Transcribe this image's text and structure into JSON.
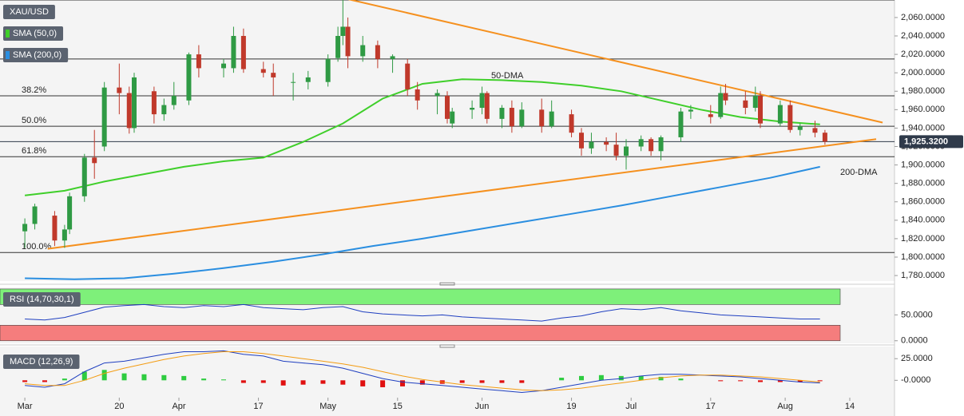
{
  "chart_data": [
    {
      "type": "candlestick",
      "title": "XAU/USD",
      "up_color": "#2f9a44",
      "down_color": "#c0392b",
      "xlim": [
        -5,
        175
      ],
      "xticks": [
        {
          "value": 0,
          "label": "Mar"
        },
        {
          "value": 19,
          "label": "20"
        },
        {
          "value": 31,
          "label": "Apr"
        },
        {
          "value": 47,
          "label": "17"
        },
        {
          "value": 61,
          "label": "May"
        },
        {
          "value": 75,
          "label": "15"
        },
        {
          "value": 92,
          "label": "Jun"
        },
        {
          "value": 110,
          "label": "19"
        },
        {
          "value": 122,
          "label": "Jul"
        },
        {
          "value": 138,
          "label": "17"
        },
        {
          "value": 153,
          "label": "Aug"
        },
        {
          "value": 166,
          "label": "14"
        }
      ],
      "ylim": [
        1774,
        2079
      ],
      "yticks": [
        {
          "value": 1780,
          "label": "1,780.0000"
        },
        {
          "value": 1800,
          "label": "1,800.0000"
        },
        {
          "value": 1820,
          "label": "1,820.0000"
        },
        {
          "value": 1840,
          "label": "1,840.0000"
        },
        {
          "value": 1860,
          "label": "1,860.0000"
        },
        {
          "value": 1880,
          "label": "1,880.0000"
        },
        {
          "value": 1900,
          "label": "1,900.0000"
        },
        {
          "value": 1920,
          "label": "1,920.0000"
        },
        {
          "value": 1940,
          "label": "1,940.0000"
        },
        {
          "value": 1960,
          "label": "1,960.0000"
        },
        {
          "value": 1980,
          "label": "1,980.0000"
        },
        {
          "value": 2000,
          "label": "2,000.0000"
        },
        {
          "value": 2020,
          "label": "2,020.0000"
        },
        {
          "value": 2040,
          "label": "2,040.0000"
        },
        {
          "value": 2060,
          "label": "2,060.0000"
        }
      ],
      "candles": [
        [
          0,
          1828,
          1842,
          1810,
          1836
        ],
        [
          2,
          1836,
          1858,
          1830,
          1855
        ],
        [
          6,
          1845,
          1850,
          1812,
          1818
        ],
        [
          8,
          1818,
          1835,
          1810,
          1830
        ],
        [
          9,
          1830,
          1870,
          1825,
          1866
        ],
        [
          12,
          1866,
          1912,
          1860,
          1908
        ],
        [
          14,
          1908,
          1938,
          1885,
          1902
        ],
        [
          16,
          1920,
          1990,
          1915,
          1984
        ],
        [
          19,
          1984,
          2010,
          1955,
          1978
        ],
        [
          21,
          1978,
          1985,
          1934,
          1940
        ],
        [
          22,
          1940,
          2000,
          1935,
          1995
        ],
        [
          26,
          1980,
          1985,
          1945,
          1955
        ],
        [
          28,
          1955,
          1972,
          1948,
          1965
        ],
        [
          30,
          1965,
          1990,
          1960,
          1975
        ],
        [
          33,
          1970,
          2022,
          1965,
          2020
        ],
        [
          35,
          2020,
          2030,
          1995,
          2005
        ],
        [
          40,
          2005,
          2015,
          1995,
          2010
        ],
        [
          42,
          2005,
          2050,
          2000,
          2040
        ],
        [
          44,
          2040,
          2048,
          2000,
          2004
        ],
        [
          48,
          2004,
          2012,
          1995,
          2000
        ],
        [
          50,
          2000,
          2010,
          1975,
          1995
        ],
        [
          54,
          1990,
          2000,
          1970,
          1990
        ],
        [
          57,
          1990,
          2002,
          1982,
          1995
        ],
        [
          61,
          1990,
          2020,
          1985,
          2015
        ],
        [
          63,
          2016,
          2050,
          2012,
          2040
        ],
        [
          64,
          2040,
          2080,
          2030,
          2050
        ],
        [
          65,
          2050,
          2060,
          2005,
          2018
        ],
        [
          68,
          2018,
          2040,
          2012,
          2030
        ],
        [
          71,
          2030,
          2035,
          2005,
          2015
        ],
        [
          74,
          2015,
          2020,
          2000,
          2018
        ],
        [
          77,
          2010,
          2015,
          1975,
          1982
        ],
        [
          79,
          1982,
          1990,
          1960,
          1970
        ],
        [
          83,
          1975,
          1982,
          1955,
          1978
        ],
        [
          85,
          1975,
          1980,
          1945,
          1950
        ],
        [
          86,
          1945,
          1962,
          1940,
          1958
        ],
        [
          90,
          1960,
          1970,
          1950,
          1962
        ],
        [
          92,
          1962,
          1985,
          1955,
          1978
        ],
        [
          93,
          1978,
          1980,
          1945,
          1950
        ],
        [
          96,
          1950,
          1965,
          1940,
          1962
        ],
        [
          98,
          1962,
          1970,
          1935,
          1942
        ],
        [
          100,
          1942,
          1968,
          1940,
          1960
        ],
        [
          104,
          1960,
          1972,
          1935,
          1942
        ],
        [
          106,
          1942,
          1970,
          1940,
          1958
        ],
        [
          110,
          1955,
          1960,
          1930,
          1935
        ],
        [
          112,
          1935,
          1940,
          1910,
          1918
        ],
        [
          114,
          1918,
          1935,
          1912,
          1925
        ],
        [
          117,
          1925,
          1930,
          1915,
          1922
        ],
        [
          119,
          1922,
          1935,
          1905,
          1910
        ],
        [
          121,
          1910,
          1928,
          1895,
          1920
        ],
        [
          124,
          1920,
          1932,
          1915,
          1928
        ],
        [
          126,
          1928,
          1930,
          1910,
          1915
        ],
        [
          128,
          1915,
          1932,
          1905,
          1930
        ],
        [
          132,
          1930,
          1962,
          1925,
          1958
        ],
        [
          134,
          1958,
          1965,
          1950,
          1960
        ],
        [
          138,
          1955,
          1965,
          1945,
          1952
        ],
        [
          140,
          1952,
          1985,
          1950,
          1978
        ],
        [
          141,
          1978,
          1988,
          1965,
          1970
        ],
        [
          145,
          1970,
          1980,
          1955,
          1962
        ],
        [
          147,
          1962,
          1985,
          1958,
          1975
        ],
        [
          148,
          1975,
          1980,
          1940,
          1945
        ],
        [
          152,
          1945,
          1970,
          1942,
          1965
        ],
        [
          154,
          1965,
          1970,
          1935,
          1938
        ],
        [
          156,
          1938,
          1945,
          1932,
          1942
        ],
        [
          159,
          1940,
          1948,
          1930,
          1935
        ],
        [
          161,
          1935,
          1938,
          1922,
          1925.32
        ]
      ],
      "series": [
        {
          "name": "SMA (50,0)",
          "color": "#3fcf2a",
          "annotation": "50-DMA",
          "x": [
            0,
            8,
            16,
            24,
            32,
            40,
            48,
            56,
            64,
            72,
            80,
            88,
            96,
            104,
            112,
            120,
            128,
            136,
            144,
            152,
            160
          ],
          "values": [
            1867,
            1872,
            1882,
            1890,
            1898,
            1904,
            1908,
            1925,
            1945,
            1972,
            1988,
            1993,
            1992,
            1990,
            1986,
            1980,
            1970,
            1960,
            1952,
            1947,
            1944
          ]
        },
        {
          "name": "SMA (200,0)",
          "color": "#2a8ee0",
          "annotation": "200-DMA",
          "x": [
            0,
            10,
            20,
            30,
            40,
            50,
            60,
            70,
            80,
            90,
            100,
            110,
            120,
            130,
            140,
            150,
            160
          ],
          "values": [
            1777,
            1776,
            1777,
            1782,
            1788,
            1795,
            1803,
            1812,
            1820,
            1829,
            1838,
            1847,
            1856,
            1866,
            1876,
            1886,
            1898
          ]
        }
      ],
      "trendlines": [
        {
          "color": "#f5901e",
          "x": [
            64.9,
            172.6
          ],
          "values": [
            2080,
            1946
          ]
        },
        {
          "color": "#f5901e",
          "x": [
            4.6,
            171.3
          ],
          "values": [
            1809,
            1928
          ]
        }
      ],
      "fib_levels": [
        {
          "label": "38.2%",
          "value": 1975
        },
        {
          "label": "50.0%",
          "value": 1942
        },
        {
          "label": "61.8%",
          "value": 1909
        },
        {
          "label": "100.0%",
          "value": 1805
        }
      ],
      "levels": [
        2079,
        2015
      ],
      "last_price": {
        "value": 1925.32,
        "label": "1,925.3200"
      }
    },
    {
      "type": "line",
      "title": "RSI (14,70,30,1)",
      "ylim": [
        -5,
        103
      ],
      "yticks": [
        {
          "value": 50,
          "label": "50.0000"
        },
        {
          "value": 0,
          "label": "0.0000"
        }
      ],
      "bands": [
        {
          "from": 70,
          "to": 100,
          "color": "#7ef07a"
        },
        {
          "from": 0,
          "to": 30,
          "color": "#f57d7d"
        }
      ],
      "series": [
        {
          "color": "#1f3fc0",
          "x": [
            0,
            4,
            8,
            12,
            16,
            20,
            24,
            28,
            32,
            36,
            40,
            44,
            48,
            52,
            56,
            60,
            64,
            68,
            72,
            76,
            80,
            84,
            88,
            92,
            96,
            100,
            104,
            108,
            112,
            116,
            120,
            124,
            128,
            132,
            136,
            140,
            144,
            148,
            152,
            156,
            160
          ],
          "values": [
            42,
            40,
            45,
            55,
            65,
            68,
            70,
            66,
            64,
            68,
            66,
            70,
            64,
            62,
            60,
            64,
            66,
            56,
            52,
            50,
            48,
            50,
            46,
            44,
            42,
            40,
            38,
            44,
            48,
            56,
            62,
            60,
            64,
            58,
            54,
            50,
            48,
            46,
            44,
            42,
            42
          ]
        }
      ]
    },
    {
      "type": "macd",
      "title": "MACD (12,26,9)",
      "ylim": [
        -20,
        39
      ],
      "yticks": [
        {
          "value": 25,
          "label": "25.0000"
        },
        {
          "value": 0,
          "label": "-0.0000"
        }
      ],
      "up_color": "#2ecc40",
      "down_color": "#e01010",
      "x": [
        0,
        4,
        8,
        12,
        16,
        20,
        24,
        28,
        32,
        36,
        40,
        44,
        48,
        52,
        56,
        60,
        64,
        68,
        72,
        76,
        80,
        84,
        88,
        92,
        96,
        100,
        104,
        108,
        112,
        116,
        120,
        124,
        128,
        132,
        136,
        140,
        144,
        148,
        152,
        156,
        160
      ],
      "histogram": [
        -2,
        -2,
        2,
        10,
        12,
        8,
        7,
        6,
        5,
        2,
        1,
        -3,
        -3,
        -6,
        -5,
        -4,
        -5,
        -7,
        -8,
        -7,
        -5,
        -4,
        -3,
        -3,
        -3,
        -3,
        0,
        3,
        5,
        6,
        5,
        5,
        4,
        2,
        0,
        -1,
        -1,
        -2,
        -2,
        -2,
        -1
      ],
      "series": [
        {
          "color": "#1f3fc0",
          "values": [
            -6,
            -8,
            -4,
            10,
            20,
            22,
            26,
            30,
            33,
            33,
            34,
            30,
            28,
            22,
            20,
            18,
            14,
            8,
            2,
            -2,
            -4,
            -6,
            -8,
            -10,
            -12,
            -14,
            -12,
            -8,
            -4,
            0,
            2,
            5,
            7,
            7,
            6,
            5,
            4,
            2,
            0,
            -2,
            -3
          ]
        },
        {
          "color": "#f39c12",
          "values": [
            -4,
            -6,
            -6,
            0,
            8,
            14,
            19,
            24,
            28,
            31,
            33,
            33,
            31,
            28,
            25,
            22,
            19,
            15,
            10,
            5,
            1,
            -2,
            -5,
            -7,
            -9,
            -11,
            -12,
            -11,
            -9,
            -6,
            -3,
            0,
            3,
            5,
            6,
            6,
            5,
            4,
            2,
            0,
            -2
          ]
        }
      ]
    }
  ]
}
